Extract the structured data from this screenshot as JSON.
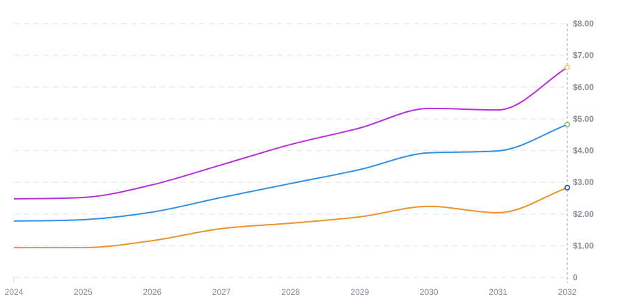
{
  "chart_data": {
    "type": "line",
    "x": [
      2024,
      2025,
      2026,
      2027,
      2028,
      2029,
      2030,
      2031,
      2032
    ],
    "x_tick_labels": [
      "2024",
      "2025",
      "2026",
      "2027",
      "2028",
      "2029",
      "2030",
      "2031",
      "2032"
    ],
    "y_tick_labels": [
      "0",
      "$1.00",
      "$2.00",
      "$3.00",
      "$4.00",
      "$5.00",
      "$6.00",
      "$7.00",
      "$8.00"
    ],
    "ylim": [
      0,
      8
    ],
    "y_axis_position": "right",
    "grid": true,
    "series": [
      {
        "color": "#b62fdc",
        "marker_color": "#e9c46a",
        "values": [
          2.48,
          2.52,
          2.92,
          3.55,
          4.19,
          4.71,
          5.33,
          5.28,
          6.62
        ]
      },
      {
        "color": "#2f8fe3",
        "marker_color": "#7cbf6a",
        "values": [
          1.78,
          1.82,
          2.06,
          2.52,
          2.96,
          3.4,
          3.93,
          3.99,
          4.82
        ]
      },
      {
        "color": "#ee9128",
        "marker_color": "#3a3f8f",
        "values": [
          0.94,
          0.94,
          1.16,
          1.54,
          1.71,
          1.91,
          2.24,
          2.04,
          2.83
        ]
      }
    ]
  }
}
